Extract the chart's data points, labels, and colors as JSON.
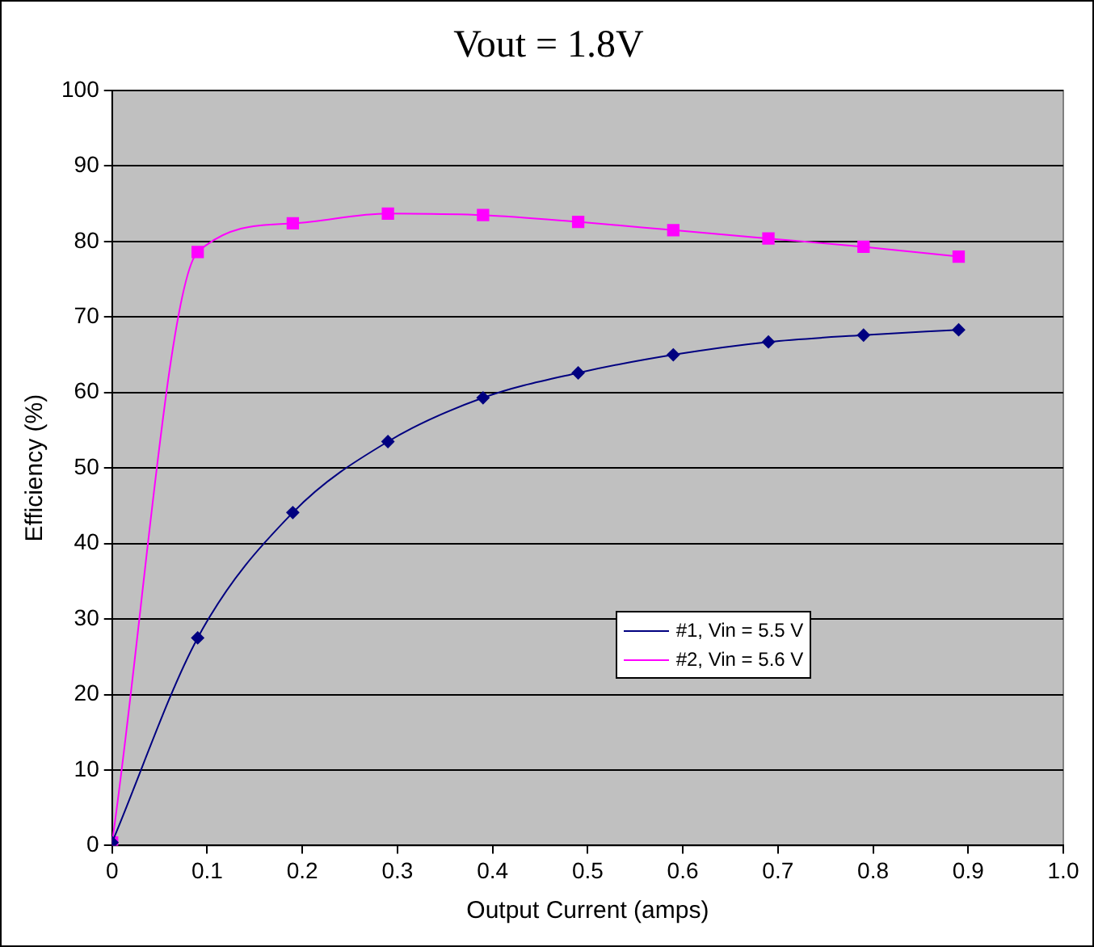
{
  "chart_data": {
    "type": "line",
    "title": "Vout = 1.8V",
    "xlabel": "Output Current (amps)",
    "ylabel": "Efficiency (%)",
    "xlim": [
      0,
      1
    ],
    "xticks": [
      {
        "value": 0,
        "label": "0"
      },
      {
        "value": 0.1,
        "label": "0.1"
      },
      {
        "value": 0.2,
        "label": "0.2"
      },
      {
        "value": 0.3,
        "label": "0.3"
      },
      {
        "value": 0.4,
        "label": "0.4"
      },
      {
        "value": 0.5,
        "label": "0.5"
      },
      {
        "value": 0.6,
        "label": "0.6"
      },
      {
        "value": 0.7,
        "label": "0.7"
      },
      {
        "value": 0.8,
        "label": "0.8"
      },
      {
        "value": 0.9,
        "label": "0.9"
      },
      {
        "value": 1,
        "label": "1.0"
      }
    ],
    "ylim": [
      0,
      100
    ],
    "yticks": [
      0,
      10,
      20,
      30,
      40,
      50,
      60,
      70,
      80,
      90,
      100
    ],
    "grid": "y",
    "legend": "bottom right",
    "x": [
      0,
      0.09,
      0.19,
      0.29,
      0.39,
      0.49,
      0.59,
      0.69,
      0.79,
      0.89
    ],
    "series": [
      {
        "name": "#1, Vin = 5.5 V",
        "color": "#000080",
        "marker": "diamond",
        "values": [
          0.4,
          27.5,
          44.1,
          53.5,
          59.3,
          62.6,
          65,
          66.7,
          67.6,
          68.3
        ]
      },
      {
        "name": "#2, Vin = 5.6 V",
        "color": "#ff00ff",
        "marker": "square",
        "values": [
          0.4,
          78.6,
          82.4,
          83.7,
          83.5,
          82.6,
          81.5,
          80.4,
          79.3,
          78.0
        ]
      }
    ]
  }
}
